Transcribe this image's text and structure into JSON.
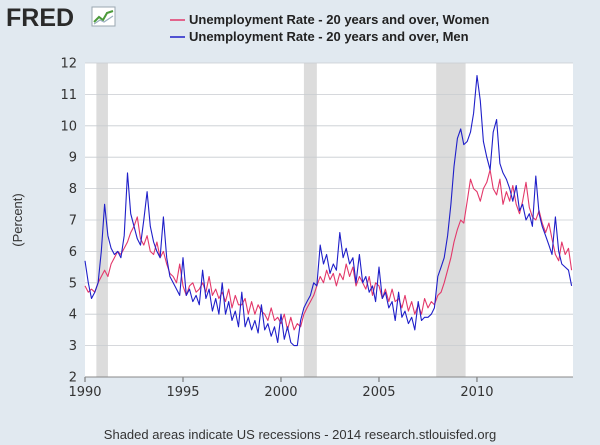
{
  "logo": {
    "text": "FRED",
    "icon": "trend-chart-icon"
  },
  "colors": {
    "background": "#e1e9f0",
    "plot_background": "#ffffff",
    "women": "#e3386a",
    "men": "#1f1fc9",
    "recession": "#dcdcdc",
    "grid": "#c8ccd0",
    "logo": "#2a2a2a"
  },
  "footer": "Shaded areas indicate US recessions - 2014 research.stlouisfed.org",
  "chart_data": {
    "type": "line",
    "title": "",
    "ylabel": "(Percent)",
    "xlabel": "",
    "xlim": [
      1990,
      2014.9
    ],
    "ylim": [
      2,
      12
    ],
    "yticks": [
      2,
      3,
      4,
      5,
      6,
      7,
      8,
      9,
      10,
      11,
      12
    ],
    "xticks": [
      1990,
      1995,
      2000,
      2005,
      2010
    ],
    "grid": true,
    "legend_position": "top",
    "recessions": [
      [
        1990.58,
        1991.17
      ],
      [
        2001.17,
        2001.83
      ],
      [
        2007.92,
        2009.42
      ]
    ],
    "series": [
      {
        "name": "Unemployment Rate - 20 years and over, Women",
        "key": "women",
        "points": [
          [
            1990.0,
            4.9
          ],
          [
            1990.17,
            4.7
          ],
          [
            1990.33,
            4.8
          ],
          [
            1990.5,
            4.7
          ],
          [
            1990.67,
            5.0
          ],
          [
            1990.83,
            5.2
          ],
          [
            1991.0,
            5.4
          ],
          [
            1991.17,
            5.2
          ],
          [
            1991.33,
            5.6
          ],
          [
            1991.5,
            5.8
          ],
          [
            1991.67,
            6.0
          ],
          [
            1991.83,
            5.9
          ],
          [
            1992.0,
            6.1
          ],
          [
            1992.17,
            6.3
          ],
          [
            1992.33,
            6.6
          ],
          [
            1992.5,
            6.8
          ],
          [
            1992.67,
            7.1
          ],
          [
            1992.83,
            6.4
          ],
          [
            1993.0,
            6.2
          ],
          [
            1993.17,
            6.5
          ],
          [
            1993.33,
            6.0
          ],
          [
            1993.5,
            5.9
          ],
          [
            1993.67,
            6.3
          ],
          [
            1993.83,
            5.8
          ],
          [
            1994.0,
            6.0
          ],
          [
            1994.17,
            5.6
          ],
          [
            1994.33,
            5.3
          ],
          [
            1994.5,
            5.2
          ],
          [
            1994.67,
            5.0
          ],
          [
            1994.83,
            5.6
          ],
          [
            1995.0,
            4.9
          ],
          [
            1995.17,
            4.6
          ],
          [
            1995.33,
            4.9
          ],
          [
            1995.5,
            5.0
          ],
          [
            1995.67,
            4.7
          ],
          [
            1995.83,
            4.8
          ],
          [
            1996.0,
            5.0
          ],
          [
            1996.17,
            4.7
          ],
          [
            1996.33,
            5.2
          ],
          [
            1996.5,
            4.6
          ],
          [
            1996.67,
            4.8
          ],
          [
            1996.83,
            4.5
          ],
          [
            1997.0,
            4.7
          ],
          [
            1997.17,
            4.4
          ],
          [
            1997.33,
            4.8
          ],
          [
            1997.5,
            4.2
          ],
          [
            1997.67,
            4.6
          ],
          [
            1997.83,
            4.3
          ],
          [
            1998.0,
            4.3
          ],
          [
            1998.17,
            4.5
          ],
          [
            1998.33,
            4.0
          ],
          [
            1998.5,
            4.4
          ],
          [
            1998.67,
            4.0
          ],
          [
            1998.83,
            4.3
          ],
          [
            1999.0,
            4.1
          ],
          [
            1999.17,
            4.0
          ],
          [
            1999.33,
            3.8
          ],
          [
            1999.5,
            4.2
          ],
          [
            1999.67,
            3.8
          ],
          [
            1999.83,
            3.9
          ],
          [
            2000.0,
            3.7
          ],
          [
            2000.17,
            4.0
          ],
          [
            2000.33,
            3.5
          ],
          [
            2000.5,
            3.9
          ],
          [
            2000.67,
            3.5
          ],
          [
            2000.83,
            3.7
          ],
          [
            2001.0,
            3.6
          ],
          [
            2001.17,
            4.0
          ],
          [
            2001.33,
            4.2
          ],
          [
            2001.5,
            4.4
          ],
          [
            2001.67,
            4.6
          ],
          [
            2001.83,
            4.9
          ],
          [
            2002.0,
            5.2
          ],
          [
            2002.17,
            5.0
          ],
          [
            2002.33,
            5.4
          ],
          [
            2002.5,
            5.1
          ],
          [
            2002.67,
            5.3
          ],
          [
            2002.83,
            4.9
          ],
          [
            2003.0,
            5.3
          ],
          [
            2003.17,
            5.1
          ],
          [
            2003.33,
            5.6
          ],
          [
            2003.5,
            5.2
          ],
          [
            2003.67,
            5.5
          ],
          [
            2003.83,
            4.9
          ],
          [
            2004.0,
            5.2
          ],
          [
            2004.17,
            5.0
          ],
          [
            2004.33,
            4.8
          ],
          [
            2004.5,
            5.2
          ],
          [
            2004.67,
            4.6
          ],
          [
            2004.83,
            5.0
          ],
          [
            2005.0,
            4.9
          ],
          [
            2005.17,
            4.5
          ],
          [
            2005.33,
            4.8
          ],
          [
            2005.5,
            4.4
          ],
          [
            2005.67,
            4.8
          ],
          [
            2005.83,
            4.4
          ],
          [
            2006.0,
            4.5
          ],
          [
            2006.17,
            4.2
          ],
          [
            2006.33,
            4.6
          ],
          [
            2006.5,
            4.1
          ],
          [
            2006.67,
            4.4
          ],
          [
            2006.83,
            4.0
          ],
          [
            2007.0,
            4.3
          ],
          [
            2007.17,
            4.0
          ],
          [
            2007.33,
            4.5
          ],
          [
            2007.5,
            4.2
          ],
          [
            2007.67,
            4.4
          ],
          [
            2007.83,
            4.3
          ],
          [
            2008.0,
            4.6
          ],
          [
            2008.17,
            4.7
          ],
          [
            2008.33,
            5.0
          ],
          [
            2008.5,
            5.4
          ],
          [
            2008.67,
            5.8
          ],
          [
            2008.83,
            6.3
          ],
          [
            2009.0,
            6.7
          ],
          [
            2009.17,
            7.0
          ],
          [
            2009.33,
            6.9
          ],
          [
            2009.5,
            7.6
          ],
          [
            2009.67,
            8.3
          ],
          [
            2009.83,
            8.0
          ],
          [
            2010.0,
            7.9
          ],
          [
            2010.17,
            7.6
          ],
          [
            2010.33,
            8.0
          ],
          [
            2010.5,
            8.2
          ],
          [
            2010.67,
            8.6
          ],
          [
            2010.83,
            8.0
          ],
          [
            2011.0,
            7.8
          ],
          [
            2011.17,
            8.3
          ],
          [
            2011.33,
            7.5
          ],
          [
            2011.5,
            7.9
          ],
          [
            2011.67,
            7.6
          ],
          [
            2011.83,
            8.1
          ],
          [
            2012.0,
            7.5
          ],
          [
            2012.17,
            7.2
          ],
          [
            2012.33,
            7.6
          ],
          [
            2012.5,
            8.2
          ],
          [
            2012.67,
            7.4
          ],
          [
            2012.83,
            7.1
          ],
          [
            2013.0,
            7.0
          ],
          [
            2013.17,
            7.3
          ],
          [
            2013.33,
            6.9
          ],
          [
            2013.5,
            6.6
          ],
          [
            2013.67,
            6.9
          ],
          [
            2013.83,
            6.4
          ],
          [
            2014.0,
            5.9
          ],
          [
            2014.17,
            5.7
          ],
          [
            2014.33,
            6.3
          ],
          [
            2014.5,
            5.9
          ],
          [
            2014.67,
            6.1
          ],
          [
            2014.83,
            5.4
          ]
        ]
      },
      {
        "name": "Unemployment Rate - 20 years and over, Men",
        "key": "men",
        "points": [
          [
            1990.0,
            5.7
          ],
          [
            1990.17,
            5.0
          ],
          [
            1990.33,
            4.5
          ],
          [
            1990.5,
            4.7
          ],
          [
            1990.67,
            5.0
          ],
          [
            1990.83,
            6.0
          ],
          [
            1991.0,
            7.5
          ],
          [
            1991.17,
            6.5
          ],
          [
            1991.33,
            6.1
          ],
          [
            1991.5,
            5.9
          ],
          [
            1991.67,
            6.0
          ],
          [
            1991.83,
            5.8
          ],
          [
            1992.0,
            6.5
          ],
          [
            1992.17,
            8.5
          ],
          [
            1992.33,
            7.2
          ],
          [
            1992.5,
            6.8
          ],
          [
            1992.67,
            6.4
          ],
          [
            1992.83,
            6.2
          ],
          [
            1993.0,
            7.0
          ],
          [
            1993.17,
            7.9
          ],
          [
            1993.33,
            6.8
          ],
          [
            1993.5,
            6.3
          ],
          [
            1993.67,
            6.0
          ],
          [
            1993.83,
            5.8
          ],
          [
            1994.0,
            7.1
          ],
          [
            1994.17,
            5.8
          ],
          [
            1994.33,
            5.2
          ],
          [
            1994.5,
            5.0
          ],
          [
            1994.67,
            4.8
          ],
          [
            1994.83,
            4.6
          ],
          [
            1995.0,
            5.8
          ],
          [
            1995.17,
            4.6
          ],
          [
            1995.33,
            4.8
          ],
          [
            1995.5,
            4.4
          ],
          [
            1995.67,
            4.6
          ],
          [
            1995.83,
            4.3
          ],
          [
            1996.0,
            5.4
          ],
          [
            1996.17,
            4.5
          ],
          [
            1996.33,
            4.8
          ],
          [
            1996.5,
            4.1
          ],
          [
            1996.67,
            4.5
          ],
          [
            1996.83,
            4.0
          ],
          [
            1997.0,
            5.0
          ],
          [
            1997.17,
            4.0
          ],
          [
            1997.33,
            4.4
          ],
          [
            1997.5,
            3.8
          ],
          [
            1997.67,
            4.1
          ],
          [
            1997.83,
            3.6
          ],
          [
            1998.0,
            4.7
          ],
          [
            1998.17,
            3.6
          ],
          [
            1998.33,
            3.9
          ],
          [
            1998.5,
            3.5
          ],
          [
            1998.67,
            3.8
          ],
          [
            1998.83,
            3.4
          ],
          [
            1999.0,
            4.3
          ],
          [
            1999.17,
            3.5
          ],
          [
            1999.33,
            3.7
          ],
          [
            1999.5,
            3.3
          ],
          [
            1999.67,
            3.6
          ],
          [
            1999.83,
            3.1
          ],
          [
            2000.0,
            4.0
          ],
          [
            2000.17,
            3.2
          ],
          [
            2000.33,
            3.6
          ],
          [
            2000.5,
            3.1
          ],
          [
            2000.67,
            3.0
          ],
          [
            2000.83,
            3.0
          ],
          [
            2001.0,
            3.8
          ],
          [
            2001.17,
            4.2
          ],
          [
            2001.33,
            4.4
          ],
          [
            2001.5,
            4.6
          ],
          [
            2001.67,
            5.0
          ],
          [
            2001.83,
            4.9
          ],
          [
            2002.0,
            6.2
          ],
          [
            2002.17,
            5.6
          ],
          [
            2002.33,
            5.9
          ],
          [
            2002.5,
            5.3
          ],
          [
            2002.67,
            5.6
          ],
          [
            2002.83,
            5.4
          ],
          [
            2003.0,
            6.6
          ],
          [
            2003.17,
            5.8
          ],
          [
            2003.33,
            6.1
          ],
          [
            2003.5,
            5.6
          ],
          [
            2003.67,
            5.8
          ],
          [
            2003.83,
            5.0
          ],
          [
            2004.0,
            5.9
          ],
          [
            2004.17,
            5.0
          ],
          [
            2004.33,
            5.2
          ],
          [
            2004.5,
            4.7
          ],
          [
            2004.67,
            4.9
          ],
          [
            2004.83,
            4.4
          ],
          [
            2005.0,
            5.5
          ],
          [
            2005.17,
            4.5
          ],
          [
            2005.33,
            4.7
          ],
          [
            2005.5,
            4.2
          ],
          [
            2005.67,
            4.4
          ],
          [
            2005.83,
            3.8
          ],
          [
            2006.0,
            4.7
          ],
          [
            2006.17,
            3.9
          ],
          [
            2006.33,
            4.1
          ],
          [
            2006.5,
            3.7
          ],
          [
            2006.67,
            3.9
          ],
          [
            2006.83,
            3.5
          ],
          [
            2007.0,
            4.4
          ],
          [
            2007.17,
            3.8
          ],
          [
            2007.33,
            3.9
          ],
          [
            2007.5,
            3.9
          ],
          [
            2007.67,
            4.0
          ],
          [
            2007.83,
            4.2
          ],
          [
            2008.0,
            5.2
          ],
          [
            2008.17,
            5.5
          ],
          [
            2008.33,
            5.8
          ],
          [
            2008.5,
            6.5
          ],
          [
            2008.67,
            7.5
          ],
          [
            2008.83,
            8.7
          ],
          [
            2009.0,
            9.6
          ],
          [
            2009.17,
            9.9
          ],
          [
            2009.33,
            9.4
          ],
          [
            2009.5,
            9.5
          ],
          [
            2009.67,
            9.8
          ],
          [
            2009.83,
            10.4
          ],
          [
            2010.0,
            11.6
          ],
          [
            2010.17,
            10.8
          ],
          [
            2010.33,
            9.5
          ],
          [
            2010.5,
            9.0
          ],
          [
            2010.67,
            8.6
          ],
          [
            2010.83,
            9.8
          ],
          [
            2011.0,
            10.2
          ],
          [
            2011.17,
            8.8
          ],
          [
            2011.33,
            8.5
          ],
          [
            2011.5,
            8.3
          ],
          [
            2011.67,
            8.0
          ],
          [
            2011.83,
            7.6
          ],
          [
            2012.0,
            8.1
          ],
          [
            2012.17,
            7.3
          ],
          [
            2012.33,
            7.5
          ],
          [
            2012.5,
            7.0
          ],
          [
            2012.67,
            7.2
          ],
          [
            2012.83,
            6.8
          ],
          [
            2013.0,
            8.4
          ],
          [
            2013.17,
            7.2
          ],
          [
            2013.33,
            6.8
          ],
          [
            2013.5,
            6.5
          ],
          [
            2013.67,
            6.2
          ],
          [
            2013.83,
            5.9
          ],
          [
            2014.0,
            7.1
          ],
          [
            2014.17,
            6.0
          ],
          [
            2014.33,
            5.6
          ],
          [
            2014.5,
            5.5
          ],
          [
            2014.67,
            5.4
          ],
          [
            2014.83,
            4.9
          ]
        ]
      }
    ]
  }
}
